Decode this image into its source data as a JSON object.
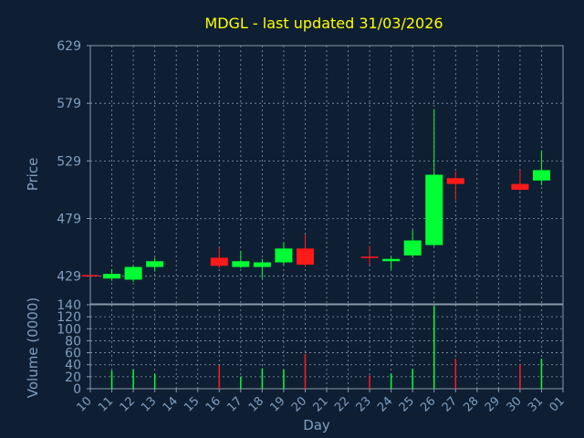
{
  "chart_data": [
    {
      "type": "candlestick",
      "title": "MDGL - last updated 31/03/2026",
      "ylabel": "Price",
      "ylim": [
        405,
        629
      ],
      "yticks": [
        429,
        479,
        529,
        579,
        629
      ],
      "grid": true,
      "x": [
        "10",
        "11",
        "12",
        "13",
        "14",
        "15",
        "16",
        "17",
        "18",
        "19",
        "20",
        "21",
        "22",
        "23",
        "24",
        "25",
        "26",
        "27",
        "28",
        "29",
        "30",
        "31",
        "01"
      ],
      "candles": [
        {
          "day": "10",
          "open": 430,
          "close": 429,
          "high": 430,
          "low": 429
        },
        {
          "day": "11",
          "open": 427,
          "close": 431,
          "high": 435,
          "low": 425
        },
        {
          "day": "12",
          "open": 426,
          "close": 437,
          "high": 438,
          "low": 424
        },
        {
          "day": "13",
          "open": 437,
          "close": 442,
          "high": 445,
          "low": 433
        },
        {
          "day": "16",
          "open": 445,
          "close": 438,
          "high": 454,
          "low": 436
        },
        {
          "day": "17",
          "open": 437,
          "close": 442,
          "high": 451,
          "low": 436
        },
        {
          "day": "18",
          "open": 437,
          "close": 441,
          "high": 444,
          "low": 427
        },
        {
          "day": "19",
          "open": 441,
          "close": 453,
          "high": 458,
          "low": 439
        },
        {
          "day": "20",
          "open": 453,
          "close": 439,
          "high": 465,
          "low": 437
        },
        {
          "day": "23",
          "open": 446,
          "close": 445,
          "high": 455,
          "low": 439
        },
        {
          "day": "24",
          "open": 442,
          "close": 444,
          "high": 446,
          "low": 435
        },
        {
          "day": "25",
          "open": 447,
          "close": 460,
          "high": 469,
          "low": 445
        },
        {
          "day": "26",
          "open": 456,
          "close": 517,
          "high": 574,
          "low": 455
        },
        {
          "day": "27",
          "open": 514,
          "close": 509,
          "high": 520,
          "low": 495
        },
        {
          "day": "30",
          "open": 509,
          "close": 504,
          "high": 521,
          "low": 503
        },
        {
          "day": "31",
          "open": 512,
          "close": 521,
          "high": 538,
          "low": 508
        }
      ]
    },
    {
      "type": "bar",
      "ylabel": "Volume (0000)",
      "xlabel": "Day",
      "ylim": [
        0,
        140
      ],
      "yticks": [
        0,
        20,
        40,
        60,
        80,
        100,
        120,
        140
      ],
      "grid": true,
      "x": [
        "10",
        "11",
        "12",
        "13",
        "14",
        "15",
        "16",
        "17",
        "18",
        "19",
        "20",
        "21",
        "22",
        "23",
        "24",
        "25",
        "26",
        "27",
        "28",
        "29",
        "30",
        "31",
        "01"
      ],
      "bars": [
        {
          "day": "11",
          "value": 30,
          "direction": "up"
        },
        {
          "day": "12",
          "value": 32,
          "direction": "up"
        },
        {
          "day": "13",
          "value": 25,
          "direction": "up"
        },
        {
          "day": "16",
          "value": 38,
          "direction": "down"
        },
        {
          "day": "17",
          "value": 20,
          "direction": "up"
        },
        {
          "day": "18",
          "value": 34,
          "direction": "up"
        },
        {
          "day": "19",
          "value": 32,
          "direction": "up"
        },
        {
          "day": "20",
          "value": 58,
          "direction": "down"
        },
        {
          "day": "23",
          "value": 22,
          "direction": "down"
        },
        {
          "day": "24",
          "value": 25,
          "direction": "up"
        },
        {
          "day": "25",
          "value": 33,
          "direction": "up"
        },
        {
          "day": "26",
          "value": 138,
          "direction": "up"
        },
        {
          "day": "27",
          "value": 50,
          "direction": "down"
        },
        {
          "day": "30",
          "value": 40,
          "direction": "down"
        },
        {
          "day": "31",
          "value": 50,
          "direction": "up"
        }
      ]
    }
  ],
  "colors": {
    "background": "#0f1f33",
    "title": "#ffff00",
    "axis_text": "#7f9fc0",
    "up": "#00ff33",
    "down": "#ff1a1a",
    "grid": "#8899aa",
    "frame": "#8899aa"
  }
}
